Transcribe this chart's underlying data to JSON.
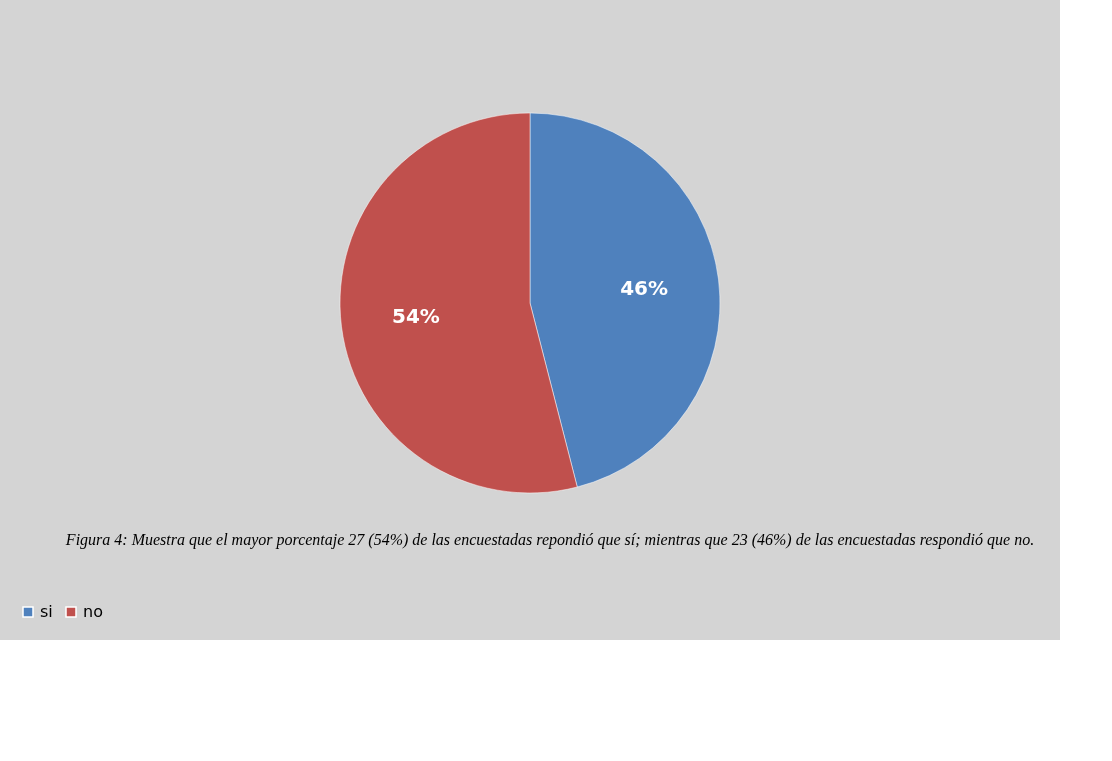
{
  "chart_data": {
    "type": "pie",
    "categories": [
      "si",
      "no"
    ],
    "values": [
      46,
      54
    ],
    "colors": [
      "#4f81bd",
      "#c0504d"
    ],
    "value_labels": [
      "46%",
      "54%"
    ],
    "legend": "bottom",
    "annotations": [
      "Figura 4: Muestra que el mayor porcentaje 27 (54%) de las encuestadas repondió que sí; mientras que 23 (46%) de las encuestadas respondió que no."
    ]
  }
}
